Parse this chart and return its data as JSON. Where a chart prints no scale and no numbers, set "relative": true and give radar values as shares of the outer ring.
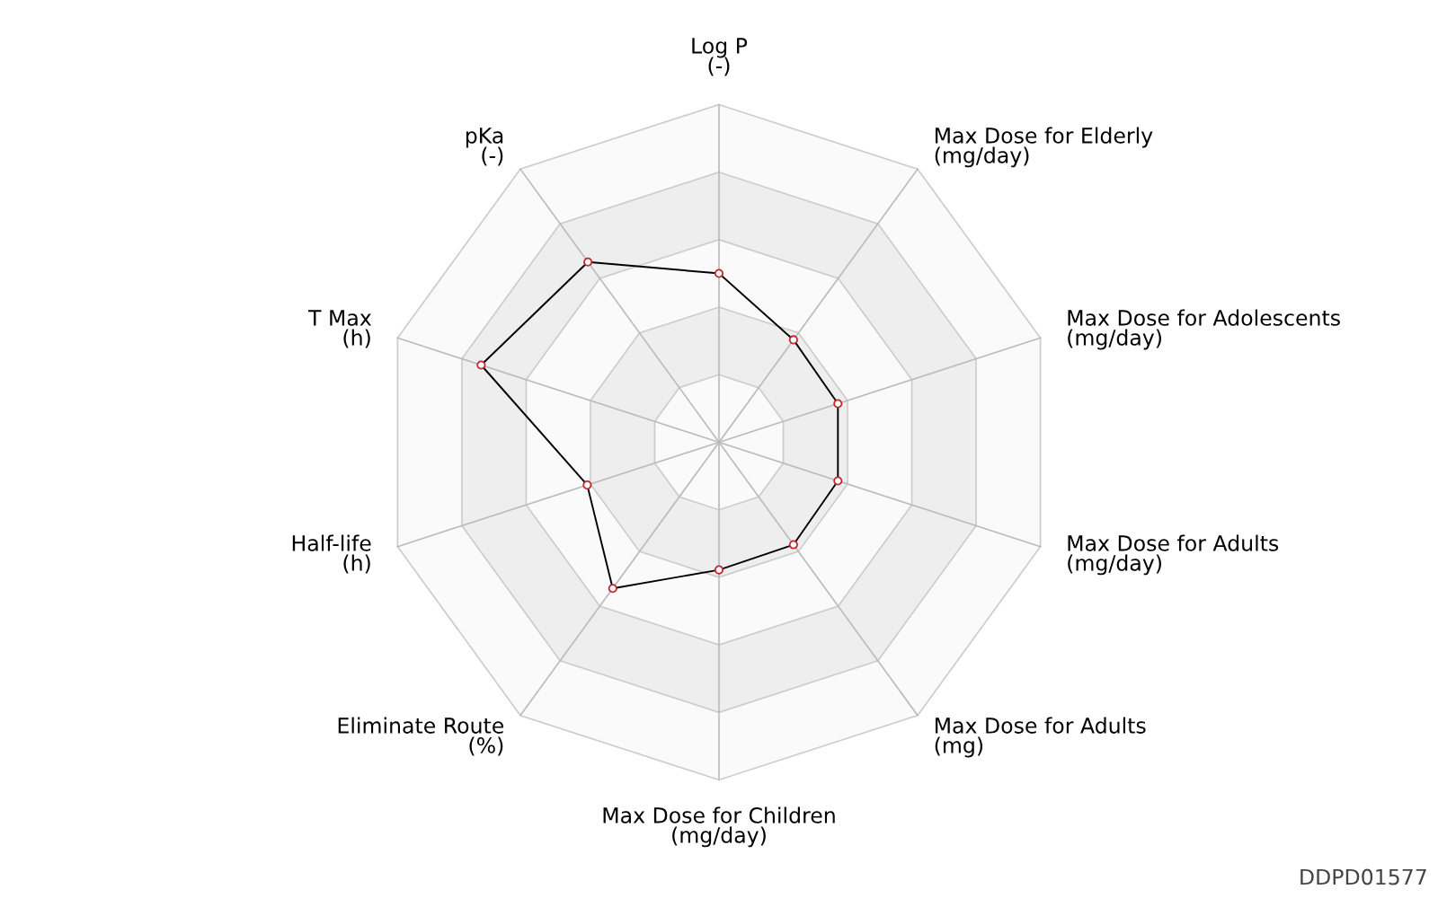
{
  "chart_data": {
    "type": "radar",
    "relative": true,
    "marker": "circle",
    "categories": [
      "Log P\n(-)",
      "Max Dose for Elderly\n(mg/day)",
      "Max Dose for Adolescents\n(mg/day)",
      "Max Dose for Adults\n(mg/day)",
      "Max Dose for Adults\n(mg)",
      "Max Dose for Children\n(mg/day)",
      "Eliminate Route\n(%)",
      "Half-life\n(h)",
      "T Max\n(h)",
      "pKa\n(-)"
    ],
    "series": [
      {
        "color": "#000000",
        "values": [
          0.5,
          0.375,
          0.37,
          0.37,
          0.375,
          0.378,
          0.535,
          0.41,
          0.74,
          0.66
        ]
      }
    ],
    "annotations": [
      "DDPD01577"
    ]
  }
}
